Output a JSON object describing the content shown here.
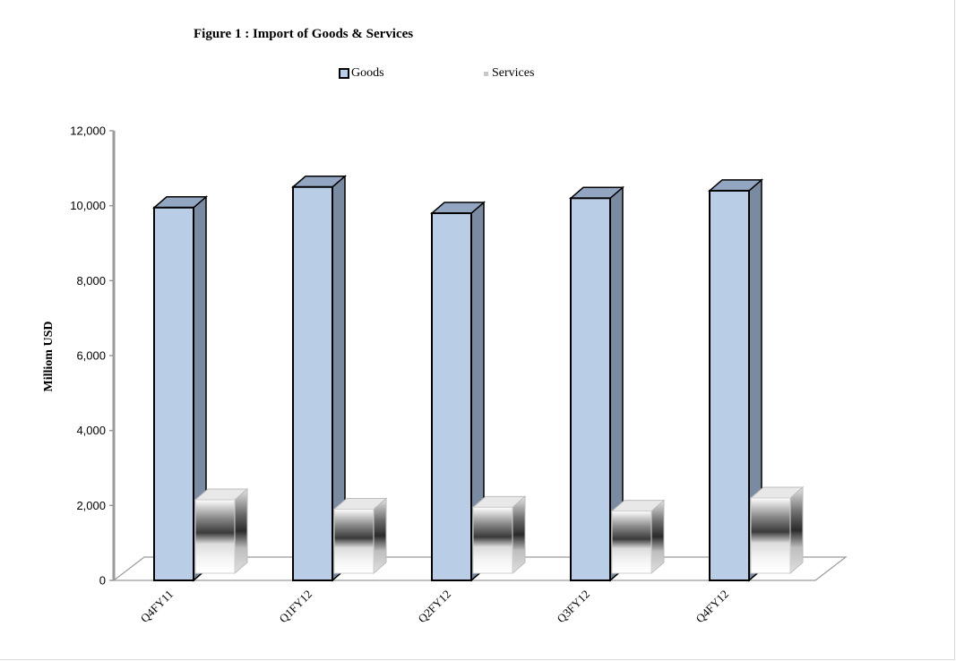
{
  "chart_data": {
    "type": "bar",
    "title": "Figure 1 : Import of Goods & Services",
    "ylabel": "Milliom USD",
    "xlabel": "",
    "categories": [
      "Q4FY11",
      "Q1FY12",
      "Q2FY12",
      "Q3FY12",
      "Q4FY12"
    ],
    "series": [
      {
        "name": "Goods",
        "values": [
          9950,
          10500,
          9800,
          10200,
          10400
        ],
        "color": "#b9cde6"
      },
      {
        "name": "Services",
        "values": [
          2150,
          1900,
          1950,
          1850,
          2200
        ],
        "color": "#c8c8c8"
      }
    ],
    "ylim": [
      0,
      12000
    ],
    "yticks": [
      "0",
      "2,000",
      "4,000",
      "6,000",
      "8,000",
      "10,000",
      "12,000"
    ],
    "ytick_values": [
      0,
      2000,
      4000,
      6000,
      8000,
      10000,
      12000
    ],
    "grid": false,
    "style": "3d-column",
    "legend": "top-center"
  }
}
